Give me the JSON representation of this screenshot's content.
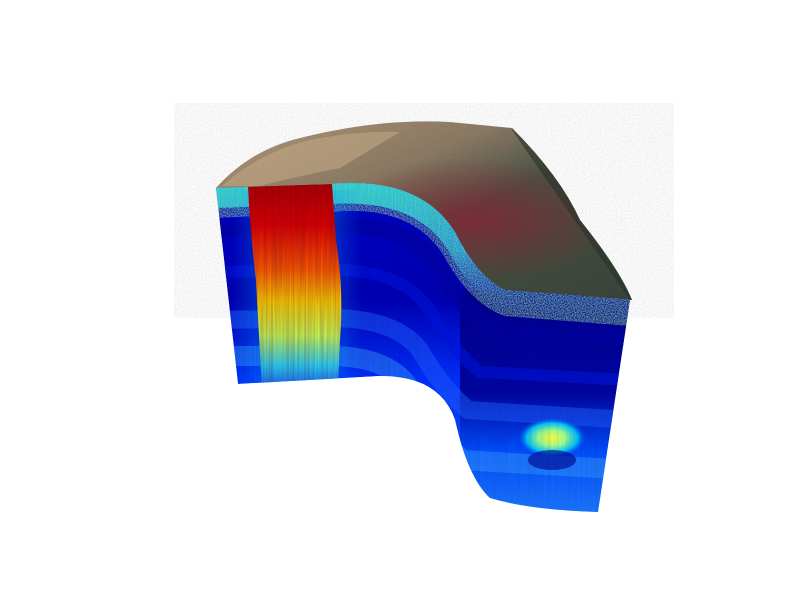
{
  "scene": {
    "description_icon": "3d-volume-slice",
    "colormap": [
      "#00007f",
      "#0000ff",
      "#007fff",
      "#00ffff",
      "#7fff7f",
      "#ffff00",
      "#ff7f00",
      "#ff0000",
      "#7f0000"
    ],
    "background_color": "#ffffff",
    "terrain_colors": {
      "light": "#a88e72",
      "dark": "#3e4a3e",
      "red_tint": "#7a2a32"
    }
  }
}
